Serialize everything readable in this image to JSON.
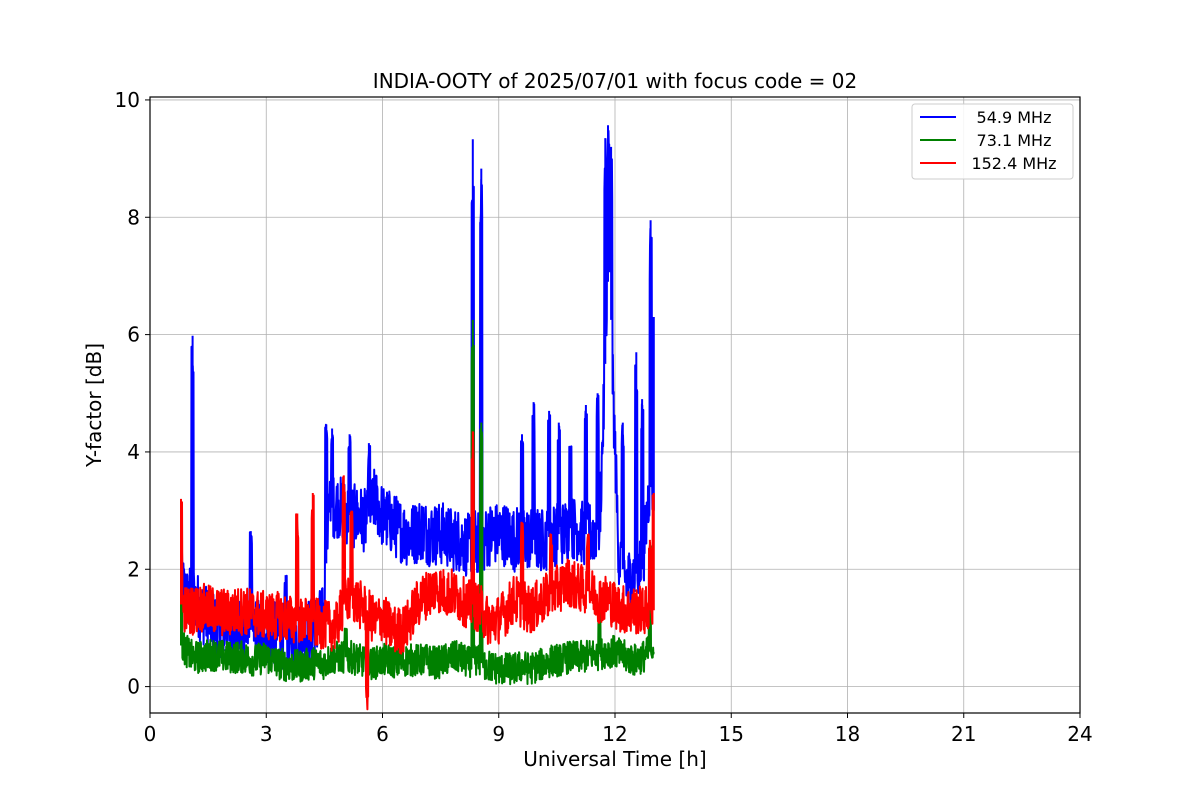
{
  "chart_data": {
    "type": "line",
    "title": "INDIA-OOTY of 2025/07/01 with focus code = 02",
    "xlabel": "Universal Time [h]",
    "ylabel": "Y-factor [dB]",
    "xlim": [
      0,
      24
    ],
    "ylim": [
      -0.45,
      10.05
    ],
    "xticks": [
      0,
      3,
      6,
      9,
      12,
      15,
      18,
      21,
      24
    ],
    "yticks": [
      0,
      2,
      4,
      6,
      8,
      10
    ],
    "grid": true,
    "legend_position": "top-right",
    "x": [
      0.8,
      0.95,
      1.1,
      1.3,
      1.6,
      2.0,
      2.4,
      2.7,
      3.0,
      3.3,
      3.6,
      3.9,
      4.2,
      4.5,
      4.6,
      4.8,
      5.0,
      5.2,
      5.4,
      5.6,
      5.8,
      6.0,
      6.2,
      6.4,
      6.6,
      6.8,
      7.0,
      7.2,
      7.4,
      7.6,
      7.8,
      8.0,
      8.2,
      8.35,
      8.55,
      8.75,
      9.0,
      9.2,
      9.4,
      9.6,
      9.8,
      10.0,
      10.2,
      10.4,
      10.6,
      10.8,
      11.0,
      11.2,
      11.4,
      11.6,
      11.75,
      11.85,
      11.95,
      12.1,
      12.3,
      12.5,
      12.7,
      12.9,
      13.0
    ],
    "series": [
      {
        "name": "54.9 MHz",
        "color": "#0000ff",
        "values": [
          1.8,
          1.5,
          1.6,
          1.3,
          1.1,
          1.0,
          0.9,
          1.0,
          0.9,
          0.9,
          0.8,
          0.9,
          1.0,
          1.2,
          3.0,
          3.1,
          3.0,
          2.9,
          2.9,
          2.8,
          3.2,
          2.9,
          2.8,
          2.7,
          2.6,
          2.6,
          2.7,
          2.6,
          2.6,
          2.6,
          2.5,
          2.5,
          2.4,
          2.5,
          2.4,
          2.6,
          2.6,
          2.6,
          2.5,
          2.6,
          2.5,
          2.5,
          2.5,
          2.6,
          2.6,
          2.7,
          2.7,
          2.6,
          2.6,
          2.7,
          5.5,
          7.5,
          5.0,
          2.2,
          1.8,
          1.9,
          2.0,
          3.5,
          3.0
        ],
        "spikes": [
          [
            1.1,
            5.98
          ],
          [
            2.6,
            2.65
          ],
          [
            3.5,
            1.9
          ],
          [
            4.55,
            4.47
          ],
          [
            4.7,
            4.4
          ],
          [
            5.15,
            4.3
          ],
          [
            5.65,
            4.15
          ],
          [
            8.33,
            9.33
          ],
          [
            8.55,
            8.83
          ],
          [
            9.6,
            4.3
          ],
          [
            9.9,
            4.85
          ],
          [
            10.3,
            4.7
          ],
          [
            10.55,
            4.5
          ],
          [
            10.85,
            4.1
          ],
          [
            11.25,
            4.8
          ],
          [
            11.55,
            5.0
          ],
          [
            11.75,
            9.35
          ],
          [
            11.82,
            9.57
          ],
          [
            11.9,
            9.2
          ],
          [
            12.2,
            4.5
          ],
          [
            12.55,
            5.7
          ],
          [
            12.7,
            4.9
          ],
          [
            12.92,
            7.95
          ],
          [
            13.0,
            6.3
          ]
        ]
      },
      {
        "name": "73.1 MHz",
        "color": "#008000",
        "values": [
          0.7,
          0.6,
          0.5,
          0.5,
          0.55,
          0.5,
          0.5,
          0.45,
          0.5,
          0.4,
          0.35,
          0.35,
          0.4,
          0.4,
          0.45,
          0.5,
          0.5,
          0.5,
          0.45,
          0.4,
          0.4,
          0.45,
          0.45,
          0.4,
          0.45,
          0.45,
          0.45,
          0.45,
          0.4,
          0.45,
          0.5,
          0.5,
          0.4,
          0.5,
          0.4,
          0.35,
          0.3,
          0.3,
          0.3,
          0.35,
          0.3,
          0.35,
          0.4,
          0.45,
          0.45,
          0.5,
          0.5,
          0.5,
          0.55,
          0.55,
          0.6,
          0.6,
          0.6,
          0.55,
          0.5,
          0.45,
          0.5,
          0.6,
          0.7
        ],
        "spikes": [
          [
            0.8,
            1.4
          ],
          [
            5.05,
            1.0
          ],
          [
            8.33,
            6.25
          ],
          [
            8.55,
            4.5
          ],
          [
            11.6,
            1.3
          ],
          [
            12.9,
            2.4
          ]
        ]
      },
      {
        "name": "152.4 MHz",
        "color": "#ff0000",
        "values": [
          1.4,
          1.3,
          1.3,
          1.35,
          1.3,
          1.25,
          1.3,
          1.25,
          1.2,
          1.2,
          1.15,
          1.1,
          1.1,
          1.05,
          1.05,
          1.0,
          1.4,
          1.55,
          1.4,
          1.3,
          1.1,
          1.2,
          1.0,
          0.95,
          1.0,
          1.3,
          1.5,
          1.6,
          1.7,
          1.6,
          1.6,
          1.5,
          1.4,
          1.4,
          1.3,
          1.1,
          1.15,
          1.3,
          1.5,
          1.4,
          1.3,
          1.4,
          1.5,
          1.6,
          1.7,
          1.8,
          1.7,
          1.65,
          1.6,
          1.5,
          1.5,
          1.5,
          1.4,
          1.35,
          1.3,
          1.3,
          1.3,
          1.3,
          1.3
        ],
        "spikes": [
          [
            0.8,
            3.2
          ],
          [
            3.8,
            2.95
          ],
          [
            4.2,
            3.3
          ],
          [
            5.0,
            3.6
          ],
          [
            5.2,
            3.0
          ],
          [
            5.6,
            0.0
          ],
          [
            8.33,
            4.35
          ],
          [
            9.6,
            2.8
          ],
          [
            10.35,
            2.6
          ],
          [
            11.3,
            2.6
          ],
          [
            12.9,
            2.5
          ],
          [
            13.0,
            3.3
          ]
        ]
      }
    ]
  }
}
